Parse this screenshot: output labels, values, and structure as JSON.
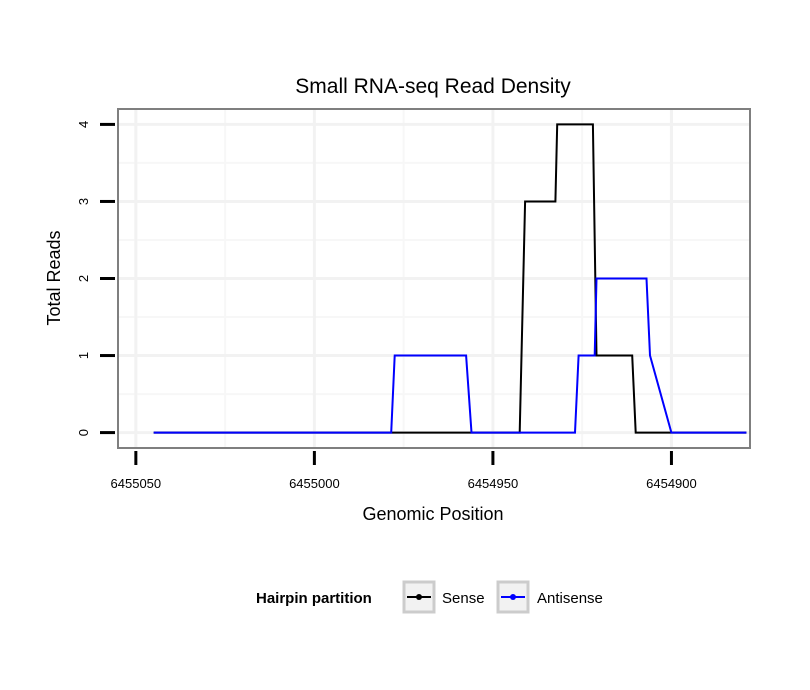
{
  "chart_data": {
    "type": "line",
    "title": "Small RNA-seq Read Density",
    "xlabel": "Genomic Position",
    "ylabel": "Total Reads",
    "x_reversed": true,
    "xlim": [
      6455055,
      6454878
    ],
    "ylim": [
      -0.2,
      4.2
    ],
    "x_ticks": [
      6455050,
      6455000,
      6454950,
      6454900
    ],
    "x_tick_labels": [
      "6455050",
      "6455000",
      "6454950",
      "6454900"
    ],
    "y_ticks": [
      0,
      1,
      2,
      3,
      4
    ],
    "y_tick_labels": [
      "0",
      "1",
      "2",
      "3",
      "4"
    ],
    "x_minor_grid": [
      6455025,
      6454975,
      6454925
    ],
    "y_minor_grid": [
      0.5,
      1.5,
      2.5,
      3.5
    ],
    "grid": true,
    "legend": {
      "title": "Hairpin partition",
      "placement": "bottom",
      "entries": [
        "Sense",
        "Antisense"
      ]
    },
    "series": [
      {
        "name": "Sense",
        "color": "#000000",
        "x": [
          6455045,
          6454942.5,
          6454941,
          6454932.5,
          6454932,
          6454922,
          6454921,
          6454911,
          6454910,
          6454900,
          6454879
        ],
        "values": [
          0,
          0,
          3,
          3,
          4,
          4,
          1,
          1,
          0,
          0,
          0
        ]
      },
      {
        "name": "Antisense",
        "color": "#0000ff",
        "x": [
          6455045,
          6454978.5,
          6454977.5,
          6454957.5,
          6454956,
          6454927,
          6454926,
          6454921.5,
          6454921,
          6454907,
          6454906,
          6454900,
          6454879
        ],
        "values": [
          0,
          0,
          1,
          1,
          0,
          0,
          1,
          1,
          2,
          2,
          1,
          0,
          0
        ]
      }
    ]
  }
}
